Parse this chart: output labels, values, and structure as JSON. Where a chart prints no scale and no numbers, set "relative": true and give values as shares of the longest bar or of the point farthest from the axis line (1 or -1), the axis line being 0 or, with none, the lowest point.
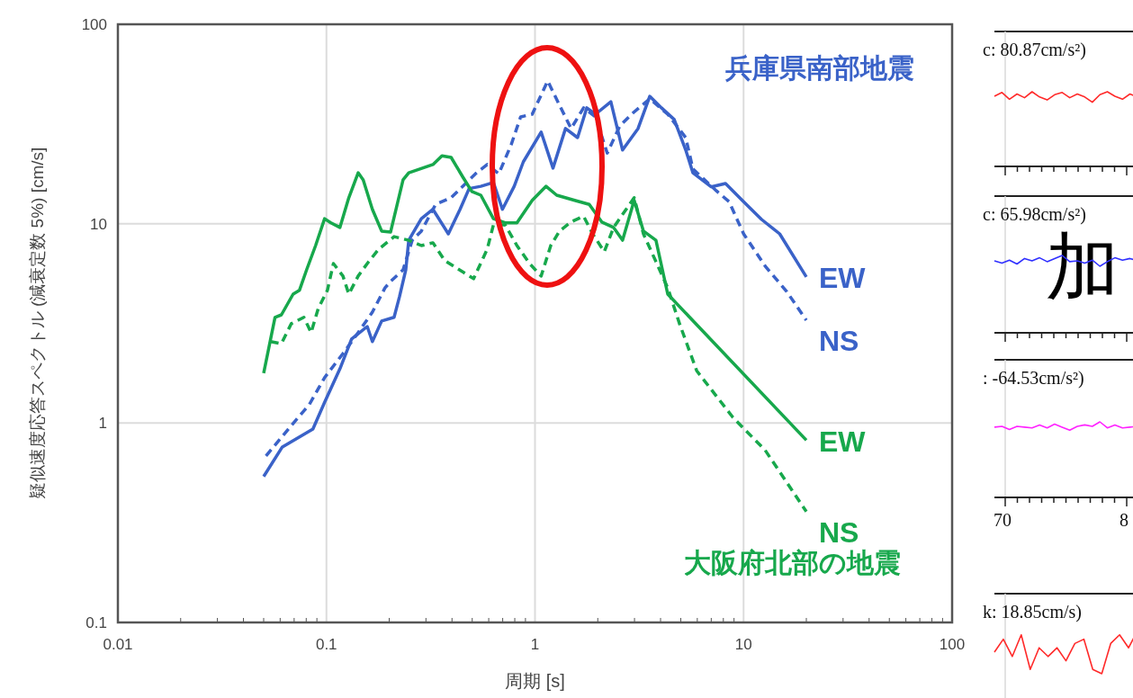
{
  "chart_data": [
    {
      "type": "line",
      "xlabel": "周期 [s]",
      "ylabel": "疑似速度応答スペクトル (減衰定数 5%) [cm/s]",
      "log": "xy",
      "xlim": [
        0.01,
        100
      ],
      "ylim": [
        0.1,
        100
      ],
      "xticks": [
        0.01,
        0.1,
        1,
        10,
        100
      ],
      "yticks": [
        0.1,
        1,
        10,
        100
      ],
      "grid": true,
      "annotations": [
        "兵庫県南部地震",
        "大阪府北部の地震"
      ],
      "series": [
        {
          "name": "EW",
          "color": "#3a62c8",
          "line_style": "solid",
          "x": [
            0.05,
            0.0614,
            0.0861,
            0.098,
            0.116,
            0.132,
            0.157,
            0.166,
            0.184,
            0.211,
            0.224,
            0.24,
            0.248,
            0.285,
            0.324,
            0.384,
            0.437,
            0.483,
            0.55,
            0.632,
            0.698,
            0.795,
            0.879,
            1.07,
            1.22,
            1.4,
            1.6,
            1.77,
            1.95,
            2.31,
            2.63,
            3.12,
            3.55,
            4.04,
            4.65,
            5.28,
            5.72,
            6.99,
            8.19,
            10.0,
            12.2,
            14.9,
            20
          ],
          "values": [
            0.54,
            0.759,
            0.933,
            1.27,
            1.87,
            2.64,
            3.05,
            2.56,
            3.25,
            3.39,
            4.3,
            5.87,
            8.26,
            10.6,
            11.8,
            8.89,
            11.8,
            15.0,
            15.4,
            16.1,
            11.8,
            15.4,
            20.4,
            28.8,
            19.0,
            30.0,
            27.0,
            38.1,
            35.4,
            40.9,
            23.4,
            30.0,
            43.5,
            38.1,
            33.3,
            23.4,
            18.0,
            15.3,
            15.9,
            12.9,
            10.5,
            8.89,
            5.41
          ]
        },
        {
          "name": "NS",
          "color": "#3a62c8",
          "line_style": "dashed",
          "x": [
            0.0513,
            0.0678,
            0.0828,
            0.098,
            0.12,
            0.142,
            0.166,
            0.191,
            0.203,
            0.233,
            0.258,
            0.285,
            0.334,
            0.396,
            0.451,
            0.518,
            0.59,
            0.671,
            0.771,
            0.853,
            0.97,
            1.15,
            1.31,
            1.49,
            1.71,
            1.95,
            2.22,
            2.55,
            2.9,
            3.55,
            4.33,
            5.28,
            5.72,
            7.41,
            8.53,
            10.0,
            12.7,
            16.1,
            20
          ],
          "values": [
            0.684,
            0.97,
            1.24,
            1.69,
            2.23,
            2.84,
            3.6,
            4.77,
            5.13,
            5.87,
            8.26,
            9.18,
            12.5,
            13.5,
            15.4,
            17.8,
            19.8,
            17.8,
            25.1,
            34.3,
            35.4,
            52.0,
            39.3,
            30.0,
            38.1,
            34.3,
            22.6,
            30.9,
            35.4,
            42.3,
            35.4,
            27.0,
            18.8,
            14.6,
            12.9,
            8.89,
            6.12,
            4.57,
            3.28
          ]
        },
        {
          "name": "EW",
          "color": "#17a84c",
          "line_style": "solid",
          "x": [
            0.05,
            0.0567,
            0.0608,
            0.0692,
            0.0742,
            0.0803,
            0.0887,
            0.098,
            0.105,
            0.116,
            0.128,
            0.142,
            0.15,
            0.166,
            0.184,
            0.203,
            0.233,
            0.248,
            0.324,
            0.358,
            0.396,
            0.451,
            0.498,
            0.55,
            0.632,
            0.719,
            0.819,
            0.97,
            1.13,
            1.27,
            1.55,
            1.82,
            2.09,
            2.38,
            2.63,
            2.99,
            3.31,
            3.8,
            4.33,
            20
          ],
          "values": [
            1.78,
            3.39,
            3.49,
            4.43,
            4.63,
            5.87,
            7.77,
            10.6,
            10.1,
            9.57,
            13.5,
            18.0,
            16.6,
            11.8,
            9.18,
            9.08,
            16.6,
            18.0,
            19.8,
            21.9,
            21.5,
            17.1,
            14.5,
            13.9,
            10.6,
            10.1,
            10.1,
            13.1,
            15.4,
            13.9,
            13.1,
            12.5,
            10.2,
            9.57,
            8.26,
            13.1,
            9.18,
            8.26,
            4.43,
            0.82
          ]
        },
        {
          "name": "NS",
          "color": "#17a84c",
          "line_style": "dashed",
          "x": [
            0.054,
            0.0608,
            0.0678,
            0.078,
            0.0844,
            0.0914,
            0.101,
            0.108,
            0.12,
            0.128,
            0.142,
            0.157,
            0.178,
            0.211,
            0.248,
            0.285,
            0.324,
            0.369,
            0.508,
            0.59,
            0.632,
            0.719,
            0.819,
            0.942,
            1.07,
            1.19,
            1.31,
            1.49,
            1.71,
            1.89,
            2.15,
            2.38,
            2.99,
            3.31,
            4.33,
            4.93,
            5.96,
            8.87,
            12.7,
            20
          ],
          "values": [
            2.56,
            2.5,
            3.15,
            3.39,
            2.84,
            3.76,
            4.63,
            6.31,
            5.46,
            4.43,
            5.46,
            6.31,
            7.45,
            8.61,
            8.26,
            7.77,
            8.02,
            6.52,
            5.3,
            7.45,
            9.86,
            9.86,
            7.77,
            6.31,
            5.46,
            7.77,
            9.18,
            10.2,
            10.9,
            8.89,
            7.23,
            9.57,
            13.5,
            8.89,
            4.76,
            3.15,
            1.83,
            1.07,
            0.73,
            0.36
          ]
        }
      ]
    },
    {
      "type": "line",
      "relative": true,
      "categories": [
        null,
        null,
        null,
        null,
        null,
        null,
        null,
        null,
        null,
        null,
        null,
        null,
        null,
        null,
        null,
        null,
        null,
        null,
        null,
        null
      ],
      "annotations": [
        "c: 80.87cm/s²)"
      ],
      "series": [
        {
          "color": "#ff2a2a",
          "values": [
            0.94,
            0.99,
            0.9,
            0.97,
            0.92,
            1,
            0.93,
            0.89,
            0.96,
            0.99,
            0.92,
            0.97,
            0.93,
            0.86,
            0.96,
            1,
            0.94,
            0.9,
            0.97,
            0.93
          ]
        }
      ]
    },
    {
      "type": "line",
      "relative": true,
      "categories": [
        null,
        null,
        null,
        null,
        null,
        null,
        null,
        null,
        null,
        null,
        null,
        null,
        null,
        null,
        null,
        null,
        null,
        null,
        null,
        null
      ],
      "annotations": [
        "c: 65.98cm/s²)",
        "加"
      ],
      "series": [
        {
          "color": "#3030ff",
          "values": [
            0.93,
            0.9,
            0.94,
            0.89,
            0.96,
            0.93,
            0.97,
            0.92,
            0.96,
            1,
            0.92,
            0.93,
            0.9,
            0.94,
            0.86,
            0.92,
            0.97,
            0.94,
            0.96,
            0.93
          ]
        }
      ]
    },
    {
      "type": "line",
      "relative": true,
      "categories": [
        null,
        null,
        null,
        null,
        null,
        null,
        null,
        null,
        null,
        null,
        null,
        null,
        null,
        null,
        null,
        null,
        null,
        null,
        null,
        null
      ],
      "annotations": [
        ": -64.53cm/s²)",
        "70",
        "8"
      ],
      "series": [
        {
          "color": "#ff22ff",
          "values": [
            0.93,
            0.94,
            0.9,
            0.94,
            0.93,
            0.92,
            0.96,
            0.92,
            0.97,
            0.93,
            0.89,
            0.94,
            0.96,
            0.94,
            1,
            0.92,
            0.96,
            0.92,
            0.93,
            0.94
          ]
        }
      ]
    },
    {
      "type": "line",
      "relative": true,
      "categories": [
        null,
        null,
        null,
        null,
        null,
        null,
        null,
        null,
        null,
        null,
        null,
        null,
        null,
        null,
        null,
        null,
        null
      ],
      "annotations": [
        "k: 18.85cm/s)"
      ],
      "series": [
        {
          "color": "#ff2a2a",
          "values": [
            0.5,
            0.8,
            0.4,
            0.9,
            0.1,
            0.6,
            0.4,
            0.6,
            0.3,
            0.7,
            0.8,
            0.1,
            0,
            0.7,
            0.9,
            0.6,
            1
          ]
        }
      ]
    }
  ]
}
